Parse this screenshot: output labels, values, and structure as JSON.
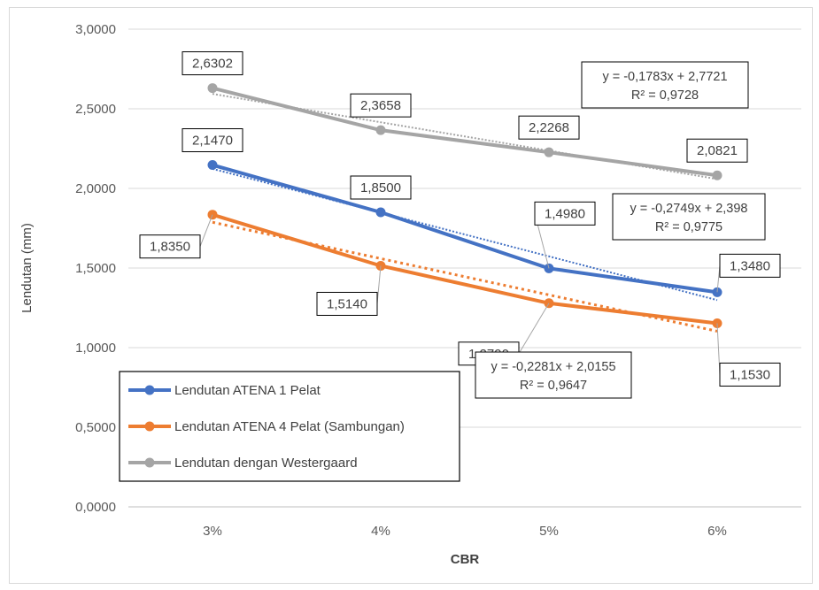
{
  "chart_data": {
    "type": "line",
    "categories": [
      "3%",
      "4%",
      "5%",
      "6%"
    ],
    "xlabel": "CBR",
    "ylabel": "Lendutan (mm)",
    "ylim": [
      0,
      3
    ],
    "yticks": [
      "0,0000",
      "0,5000",
      "1,0000",
      "1,5000",
      "2,0000",
      "2,5000",
      "3,0000"
    ],
    "grid": "horizontal",
    "legend_position": "bottom-left",
    "series": [
      {
        "name": "Lendutan ATENA 1 Pelat",
        "color": "#4472c4",
        "values": [
          2.147,
          1.85,
          1.498,
          1.348
        ],
        "labels": [
          "2,1470",
          "1,8500",
          "1,4980",
          "1,3480"
        ],
        "trend": {
          "slope": -0.2749,
          "intercept": 2.398,
          "equation": "y = -0,2749x + 2,398",
          "r2": "R² = 0,9775"
        }
      },
      {
        "name": "Lendutan ATENA 4 Pelat (Sambungan)",
        "color": "#ed7d31",
        "values": [
          1.835,
          1.514,
          1.279,
          1.153
        ],
        "labels": [
          "1,8350",
          "1,5140",
          "1,2790",
          "1,1530"
        ],
        "trend": {
          "slope": -0.2281,
          "intercept": 2.0155,
          "equation": "y = -0,2281x + 2,0155",
          "r2": "R² = 0,9647"
        }
      },
      {
        "name": "Lendutan dengan Westergaard",
        "color": "#a5a5a5",
        "values": [
          2.6302,
          2.3658,
          2.2268,
          2.0821
        ],
        "labels": [
          "2,6302",
          "2,3658",
          "2,2268",
          "2,0821"
        ],
        "trend": {
          "slope": -0.1783,
          "intercept": 2.7721,
          "equation": "y = -0,1783x + 2,7721",
          "r2": "R² = 0,9728"
        }
      }
    ]
  }
}
